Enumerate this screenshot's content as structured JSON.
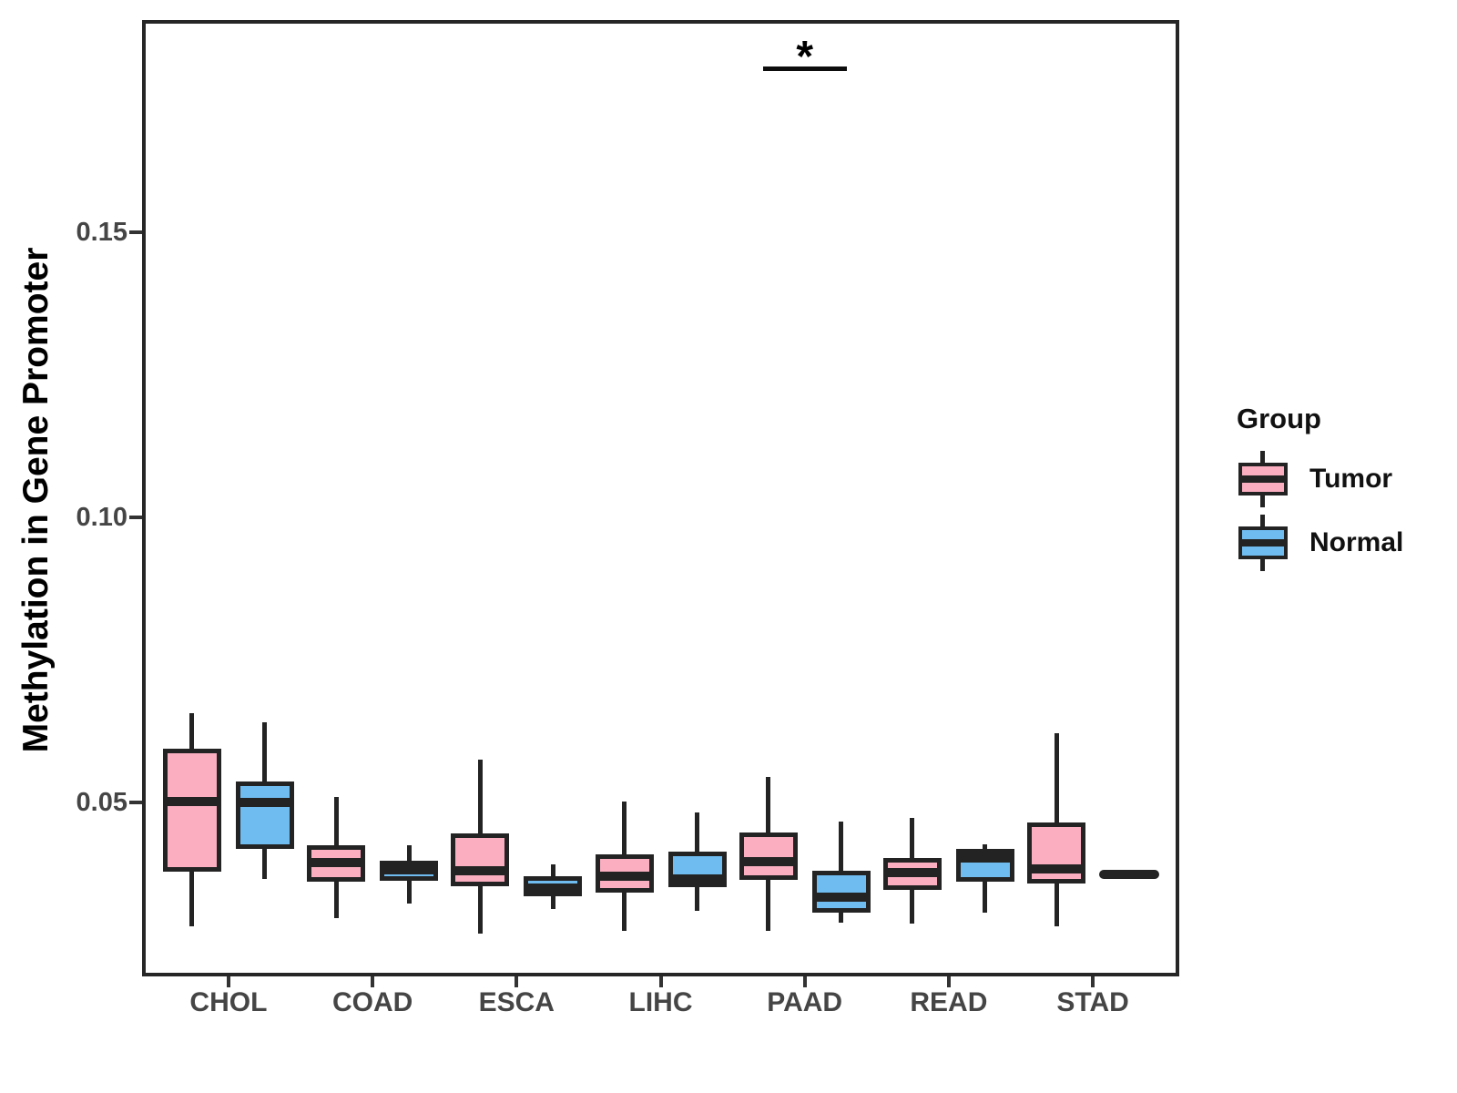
{
  "figure": {
    "y_axis_title": "Methylation in Gene Promoter",
    "significance_label": "*"
  },
  "legend": {
    "title": "Group",
    "items": [
      {
        "label": "Tumor",
        "color": "#FAAEC0"
      },
      {
        "label": "Normal",
        "color": "#6FBCF1"
      }
    ]
  },
  "chart_data": {
    "type": "boxplot",
    "title": "",
    "xlabel": "",
    "ylabel": "Methylation in Gene Promoter",
    "categories": [
      "CHOL",
      "COAD",
      "ESCA",
      "LIHC",
      "PAAD",
      "READ",
      "STAD"
    ],
    "yticks": [
      0.05,
      0.1,
      0.15
    ],
    "ylim": [
      0.0196,
      0.1871
    ],
    "grid": false,
    "legend_position": "right",
    "series": [
      {
        "name": "Tumor",
        "color": "#FAAEC0",
        "boxes": [
          {
            "category": "CHOL",
            "low": 0.0284,
            "q1": 0.038,
            "median": 0.0502,
            "q3": 0.0595,
            "high": 0.0657
          },
          {
            "category": "COAD",
            "low": 0.0298,
            "q1": 0.0362,
            "median": 0.0396,
            "q3": 0.0426,
            "high": 0.051
          },
          {
            "category": "ESCA",
            "low": 0.0271,
            "q1": 0.0354,
            "median": 0.0381,
            "q3": 0.0447,
            "high": 0.0576
          },
          {
            "category": "LIHC",
            "low": 0.0276,
            "q1": 0.0343,
            "median": 0.0372,
            "q3": 0.041,
            "high": 0.0502
          },
          {
            "category": "PAAD",
            "low": 0.0276,
            "q1": 0.0365,
            "median": 0.0397,
            "q3": 0.0448,
            "high": 0.0545
          },
          {
            "category": "READ",
            "low": 0.0289,
            "q1": 0.0348,
            "median": 0.0378,
            "q3": 0.0403,
            "high": 0.0474
          },
          {
            "category": "STAD",
            "low": 0.0284,
            "q1": 0.0359,
            "median": 0.0384,
            "q3": 0.0466,
            "high": 0.0622
          }
        ]
      },
      {
        "name": "Normal",
        "color": "#6FBCF1",
        "boxes": [
          {
            "category": "CHOL",
            "low": 0.0367,
            "q1": 0.042,
            "median": 0.0501,
            "q3": 0.0537,
            "high": 0.0641
          },
          {
            "category": "COAD",
            "low": 0.0324,
            "q1": 0.0364,
            "median": 0.0383,
            "q3": 0.0399,
            "high": 0.0426
          },
          {
            "category": "ESCA",
            "low": 0.0314,
            "q1": 0.0337,
            "median": 0.0351,
            "q3": 0.0372,
            "high": 0.0392
          },
          {
            "category": "LIHC",
            "low": 0.0311,
            "q1": 0.0352,
            "median": 0.0367,
            "q3": 0.0415,
            "high": 0.0483
          },
          {
            "category": "PAAD",
            "low": 0.029,
            "q1": 0.0308,
            "median": 0.0335,
            "q3": 0.0381,
            "high": 0.0467
          },
          {
            "category": "READ",
            "low": 0.0308,
            "q1": 0.0362,
            "median": 0.0403,
            "q3": 0.0419,
            "high": 0.0427
          },
          {
            "category": "STAD",
            "low": 0.0375,
            "q1": 0.0375,
            "median": 0.0375,
            "q3": 0.0375,
            "high": 0.0375
          }
        ]
      }
    ],
    "significance": {
      "label": "*",
      "category": "PAAD",
      "between": [
        "Tumor",
        "Normal"
      ],
      "y": 0.179
    }
  }
}
